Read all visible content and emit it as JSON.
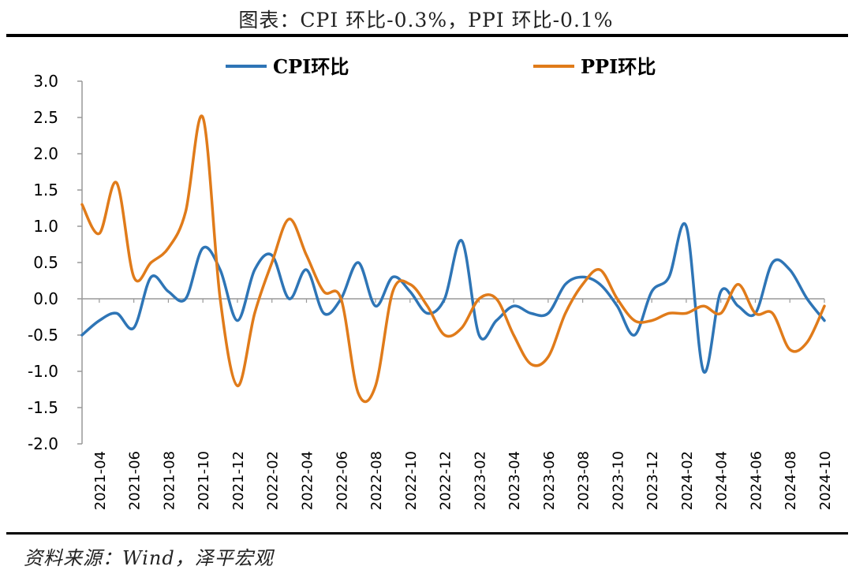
{
  "title": "图表：CPI 环比-0.3%，PPI 环比-0.1%",
  "source": "资料来源：Wind，泽平宏观",
  "chart_data": {
    "type": "line",
    "ylim": [
      -2.0,
      3.0
    ],
    "y_ticks": [
      "3.0",
      "2.5",
      "2.0",
      "1.5",
      "1.0",
      "0.5",
      "0.0",
      "-0.5",
      "-1.0",
      "-1.5",
      "-2.0"
    ],
    "x_tick_labels": [
      "2021-04",
      "2021-06",
      "2021-08",
      "2021-10",
      "2021-12",
      "2022-02",
      "2022-04",
      "2022-06",
      "2022-08",
      "2022-10",
      "2022-12",
      "2023-02",
      "2023-04",
      "2023-06",
      "2023-08",
      "2023-10",
      "2023-12",
      "2024-02",
      "2024-04",
      "2024-06",
      "2024-08",
      "2024-10"
    ],
    "x": [
      "2021-03",
      "2021-04",
      "2021-05",
      "2021-06",
      "2021-07",
      "2021-08",
      "2021-09",
      "2021-10",
      "2021-11",
      "2021-12",
      "2022-01",
      "2022-02",
      "2022-03",
      "2022-04",
      "2022-05",
      "2022-06",
      "2022-07",
      "2022-08",
      "2022-09",
      "2022-10",
      "2022-11",
      "2022-12",
      "2023-01",
      "2023-02",
      "2023-03",
      "2023-04",
      "2023-05",
      "2023-06",
      "2023-07",
      "2023-08",
      "2023-09",
      "2023-10",
      "2023-11",
      "2023-12",
      "2024-01",
      "2024-02",
      "2024-03",
      "2024-04",
      "2024-05",
      "2024-06",
      "2024-07",
      "2024-08",
      "2024-09",
      "2024-10"
    ],
    "series": [
      {
        "name": "CPI环比",
        "color": "#2E75B6",
        "values": [
          -0.5,
          -0.3,
          -0.2,
          -0.4,
          0.3,
          0.1,
          0.0,
          0.7,
          0.4,
          -0.3,
          0.4,
          0.6,
          0.0,
          0.4,
          -0.2,
          0.0,
          0.5,
          -0.1,
          0.3,
          0.1,
          -0.2,
          0.0,
          0.8,
          -0.5,
          -0.3,
          -0.1,
          -0.2,
          -0.2,
          0.2,
          0.3,
          0.2,
          -0.1,
          -0.5,
          0.1,
          0.3,
          1.0,
          -1.0,
          0.1,
          -0.1,
          -0.2,
          0.5,
          0.4,
          0.0,
          -0.3
        ]
      },
      {
        "name": "PPI环比",
        "color": "#E07B1A",
        "values": [
          1.3,
          0.9,
          1.6,
          0.3,
          0.5,
          0.7,
          1.2,
          2.5,
          0.0,
          -1.2,
          -0.2,
          0.5,
          1.1,
          0.6,
          0.1,
          0.0,
          -1.3,
          -1.2,
          0.1,
          0.2,
          -0.1,
          -0.5,
          -0.4,
          0.0,
          0.0,
          -0.5,
          -0.9,
          -0.8,
          -0.2,
          0.2,
          0.4,
          0.0,
          -0.3,
          -0.3,
          -0.2,
          -0.2,
          -0.1,
          -0.2,
          0.2,
          -0.2,
          -0.2,
          -0.7,
          -0.6,
          -0.1
        ]
      }
    ],
    "legend": {
      "position": "top",
      "items": [
        "CPI环比",
        "PPI环比"
      ]
    },
    "grid": false
  }
}
